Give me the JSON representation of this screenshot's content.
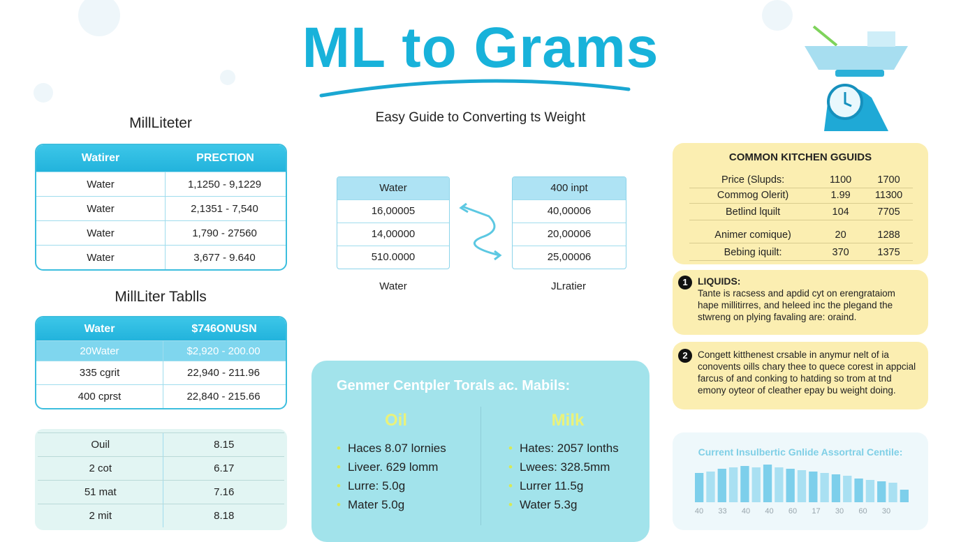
{
  "title": "ML to Grams",
  "subtitle": "Easy Guide to Converting ts Weight",
  "table1": {
    "heading": "MillLiteter",
    "header": [
      "Watirer",
      "PRECTION"
    ],
    "rows": [
      [
        "Water",
        "1,1250  - 9,1229"
      ],
      [
        "Water",
        "2,1351  - 7,540"
      ],
      [
        "Water",
        "1,790  - 27560"
      ],
      [
        "Water",
        "3,677  - 9.640"
      ]
    ]
  },
  "table2": {
    "heading": "MillLiter Tablls",
    "header": [
      "Water",
      "$746ONUSN"
    ],
    "rows": [
      [
        "20Water",
        "$2,920 - 200.00"
      ],
      [
        "335 cgrit",
        "22,940 - 211.96"
      ],
      [
        "400 cprst",
        "22,840 - 215.66"
      ]
    ]
  },
  "table3": {
    "rows": [
      [
        "Ouil",
        "8.15"
      ],
      [
        "2 cot",
        "6.17"
      ],
      [
        "51 mat",
        "7.16"
      ],
      [
        "2 mit",
        "8.18"
      ]
    ]
  },
  "convert_left": {
    "header": "Water",
    "rows": [
      "16,00005",
      "14,00000",
      "510.0000"
    ],
    "caption": "Water"
  },
  "convert_right": {
    "header": "400 inpt",
    "rows": [
      "40,00006",
      "20,00006",
      "25,00006"
    ],
    "caption": "JLratier"
  },
  "panel": {
    "title": "Genmer Centpler Torals ac. Mabils:",
    "columns": [
      {
        "heading": "Oil",
        "items": [
          "Haces 8.07 lornies",
          "Liveer. 629 lomm",
          "Lurre: 5.0g",
          "Mater 5.0g"
        ]
      },
      {
        "heading": "Milk",
        "items": [
          "Hates: 2057 lonths",
          "Lwees: 328.5mm",
          "Lurrer 11.5g",
          "Water 5.3g"
        ]
      }
    ]
  },
  "kitchen": {
    "title": "COMMON KITCHEN GGUIDS",
    "rows": [
      [
        "Price (Slupds:",
        "1100",
        "1700"
      ],
      [
        "Commog Olerit)",
        "1.99",
        "11300"
      ],
      [
        "Betlind lquilt",
        "104",
        "7705"
      ],
      [
        "Animer comique)",
        "20",
        "1288"
      ],
      [
        "Bebing iquilt:",
        "370",
        "1375"
      ]
    ]
  },
  "notes": [
    {
      "number": "1",
      "title": "LIQUIDS:",
      "text": "Tante is racsess and apdid cyt on erengrataiom hape millitirres, and heleed inc the plegand the stwreng on plying favaling are: oraind."
    },
    {
      "number": "2",
      "text": "Congett kitthenest crsable in anymur nelt of ia conovents oills chary thee to quece corest in appcial farcus of and conking to hatding so trom at tnd emony oyteor of cleather epay bu weight doing."
    }
  ],
  "mini_chart": {
    "title": "Current Insulbertic Gnlide Assortral Centile:",
    "values": [
      42,
      44,
      48,
      50,
      52,
      50,
      54,
      50,
      48,
      46,
      44,
      42,
      40,
      38,
      34,
      32,
      30,
      28,
      18
    ],
    "labels": [
      "40",
      "33",
      "40",
      "40",
      "60",
      "17",
      "30",
      "60",
      "30"
    ]
  }
}
